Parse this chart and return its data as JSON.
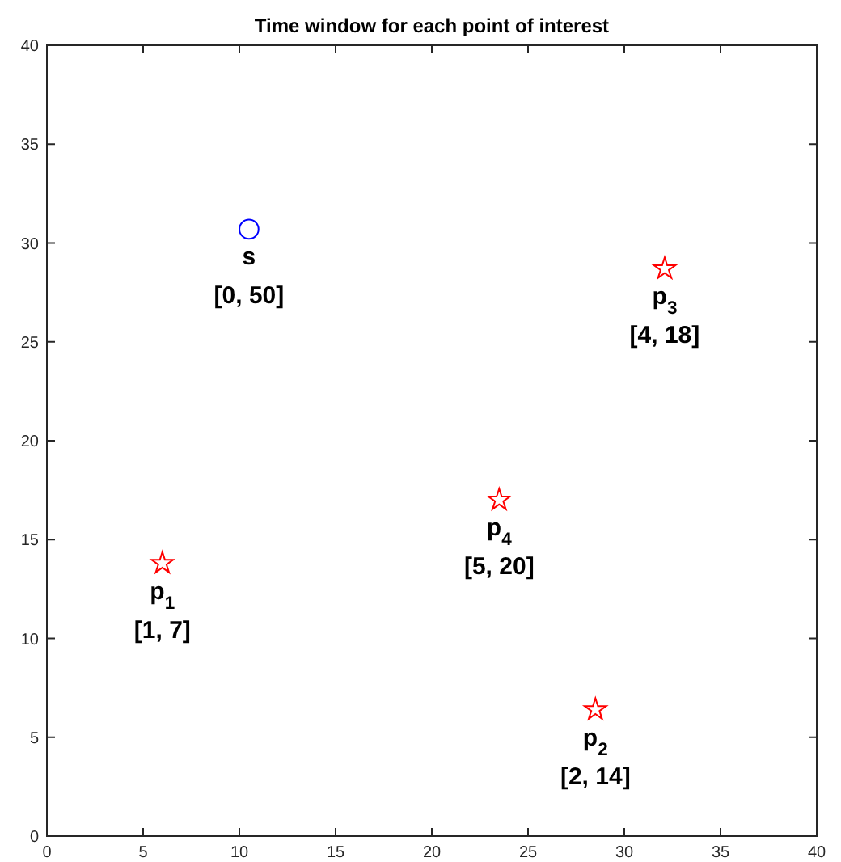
{
  "chart_data": {
    "type": "scatter",
    "title": "Time window for each point of interest",
    "xlim": [
      0,
      40
    ],
    "xticks": [
      0,
      5,
      10,
      15,
      20,
      25,
      30,
      35,
      40
    ],
    "ylim": [
      0,
      40
    ],
    "yticks": [
      0,
      5,
      10,
      15,
      20,
      25,
      30,
      35,
      40
    ],
    "grid": false,
    "series": [
      {
        "color": "#0000ff",
        "marker": "circle",
        "x": [
          10.5
        ],
        "values": [
          30.7
        ]
      },
      {
        "color": "#ff0000",
        "marker": "star",
        "x": [
          6,
          28.5,
          32.1,
          23.5
        ],
        "values": [
          13.8,
          6.4,
          28.7,
          17
        ]
      }
    ],
    "annotations": [
      {
        "text": "s",
        "x": 10.5,
        "y": 30.7
      },
      {
        "text": "[0, 50]",
        "x": 10.5,
        "y": 30.7
      },
      {
        "text": "p$_{1}$",
        "x": 6,
        "y": 13.8
      },
      {
        "text": "[1, 7]",
        "x": 6,
        "y": 13.8
      },
      {
        "text": "p$_{2}$",
        "x": 28.5,
        "y": 6.4
      },
      {
        "text": "[2, 14]",
        "x": 28.5,
        "y": 6.4
      },
      {
        "text": "p$_{3}$",
        "x": 32.1,
        "y": 28.7
      },
      {
        "text": "[4, 18]",
        "x": 32.1,
        "y": 28.7
      },
      {
        "text": "p$_{4}$",
        "x": 23.5,
        "y": 17
      },
      {
        "text": "[5, 20]",
        "x": 23.5,
        "y": 17
      }
    ]
  }
}
